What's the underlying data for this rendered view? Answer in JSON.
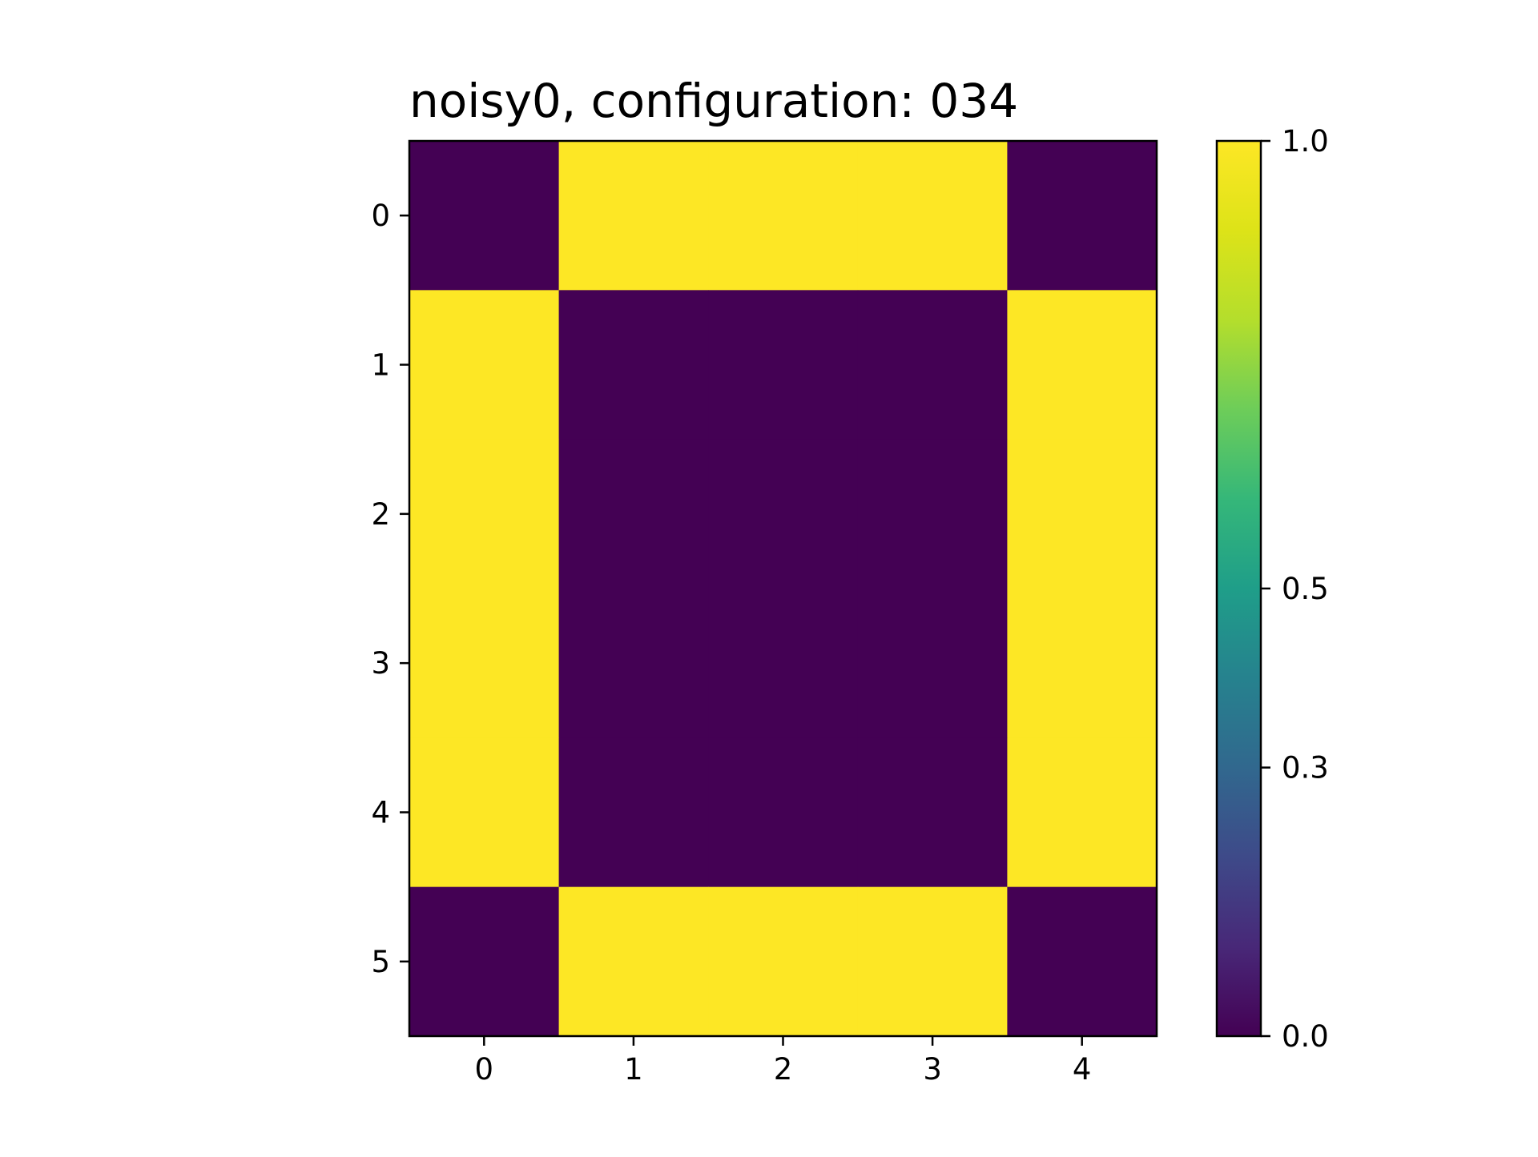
{
  "chart_data": {
    "type": "heatmap",
    "title": "noisy0, configuration: 034",
    "rows": [
      0,
      1,
      2,
      3,
      4,
      5
    ],
    "cols": [
      0,
      1,
      2,
      3,
      4
    ],
    "values": [
      [
        0,
        1,
        1,
        1,
        0
      ],
      [
        1,
        0,
        0,
        0,
        1
      ],
      [
        1,
        0,
        0,
        0,
        1
      ],
      [
        1,
        0,
        0,
        0,
        1
      ],
      [
        1,
        0,
        0,
        0,
        1
      ],
      [
        0,
        1,
        1,
        1,
        0
      ]
    ],
    "x_tick_labels": [
      "0",
      "1",
      "2",
      "3",
      "4"
    ],
    "y_tick_labels": [
      "0",
      "1",
      "2",
      "3",
      "4",
      "5"
    ],
    "colorbar": {
      "colormap": "viridis",
      "range": [
        0.0,
        1.0
      ],
      "ticks": [
        {
          "value": 0.0,
          "label": "0.0"
        },
        {
          "value": 0.3,
          "label": "0.3"
        },
        {
          "value": 0.5,
          "label": "0.5"
        },
        {
          "value": 1.0,
          "label": "1.0"
        }
      ]
    },
    "colors": {
      "low": "#440154",
      "high": "#FDE725"
    }
  }
}
